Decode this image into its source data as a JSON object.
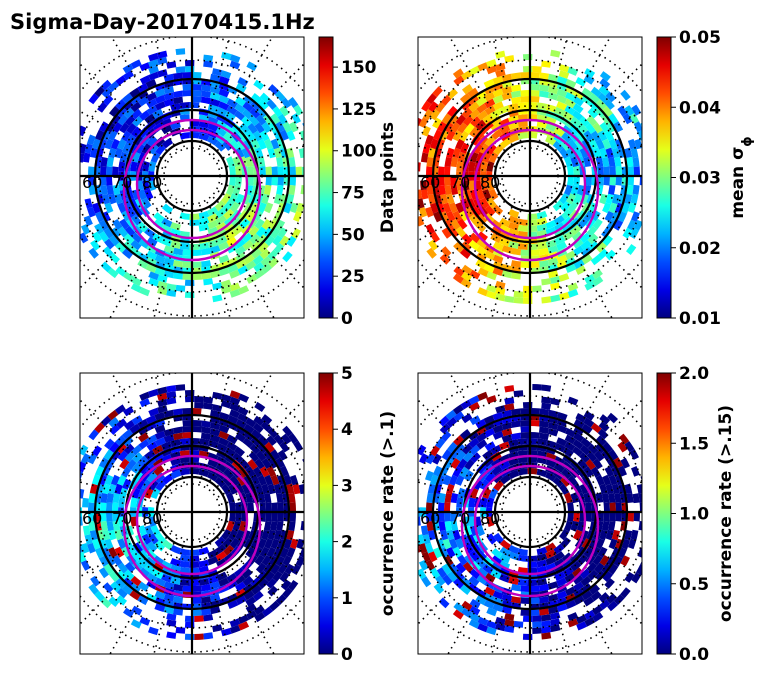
{
  "title": "Sigma-Day-20170415.1Hz",
  "chart_data": [
    {
      "type": "heatmap",
      "projection": "polar-stereographic",
      "latitude_labels": [
        "60",
        "70",
        "80"
      ],
      "colormap": "jet",
      "colorbar": {
        "label": "Data points",
        "range": [
          0,
          168
        ],
        "ticks": [
          "0",
          "25",
          "50",
          "75",
          "100",
          "125",
          "150"
        ],
        "tick_values": [
          0,
          25,
          50,
          75,
          100,
          125,
          150
        ]
      },
      "value_profile": {
        "base": 0.3,
        "amp": 0.22,
        "phase": 45
      }
    },
    {
      "type": "heatmap",
      "projection": "polar-stereographic",
      "latitude_labels": [
        "60",
        "70",
        "80"
      ],
      "colormap": "jet",
      "colorbar": {
        "label": "mean σ",
        "label_subscript": "ϕ",
        "range": [
          0.01,
          0.05
        ],
        "ticks": [
          "0.01",
          "0.02",
          "0.03",
          "0.04",
          "0.05"
        ],
        "tick_values": [
          0.01,
          0.02,
          0.03,
          0.04,
          0.05
        ]
      },
      "value_profile": {
        "base": 0.58,
        "amp": 0.34,
        "phase": 180
      }
    },
    {
      "type": "heatmap",
      "projection": "polar-stereographic",
      "latitude_labels": [
        "60",
        "70",
        "80"
      ],
      "colormap": "jet",
      "colorbar": {
        "label": "occurrence rate (>.1)",
        "range": [
          0,
          5
        ],
        "ticks": [
          "0",
          "1",
          "2",
          "3",
          "4",
          "5"
        ],
        "tick_values": [
          0,
          1,
          2,
          3,
          4,
          5
        ]
      },
      "value_profile": {
        "base": 0.05,
        "amp": 0.35,
        "phase": 160
      }
    },
    {
      "type": "heatmap",
      "projection": "polar-stereographic",
      "latitude_labels": [
        "60",
        "70",
        "80"
      ],
      "colormap": "jet",
      "colorbar": {
        "label": "occurrence rate (>.15)",
        "range": [
          0,
          2
        ],
        "ticks": [
          "0.0",
          "0.5",
          "1.0",
          "1.5",
          "2.0"
        ],
        "tick_values": [
          0,
          0.5,
          1.0,
          1.5,
          2.0
        ]
      },
      "value_profile": {
        "base": 0.02,
        "amp": 0.3,
        "phase": 160
      }
    }
  ],
  "colors": {
    "oval": "#c000c0",
    "ring": "#000000",
    "grid": "#000000"
  }
}
